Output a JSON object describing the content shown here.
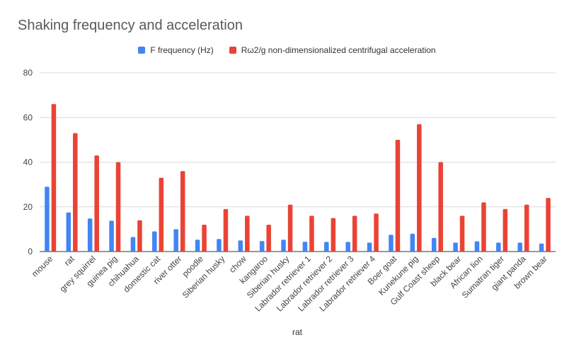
{
  "title": "Shaking frequency and acceleration",
  "chart_data": {
    "type": "bar",
    "title": "Shaking frequency and acceleration",
    "xlabel": "rat",
    "ylabel": "",
    "ylim": [
      0,
      80
    ],
    "yticks": [
      0,
      20,
      40,
      60,
      80
    ],
    "grid": true,
    "legend_position": "top-center",
    "categories": [
      "mouse",
      "rat",
      "grey squirrel",
      "guinea pig",
      "chihuahua",
      "domestic cat",
      "river otter",
      "poodle",
      "Siberian husky",
      "chow",
      "kangaroo",
      "Siberian husky",
      "Labrador retriever 1",
      "Labrador retriever 2",
      "Labrador retriever 3",
      "Labrador retriever 4",
      "Boer goat",
      "Kunekune pig",
      "Gulf Coast sheep",
      "black bear",
      "African lion",
      "Sumatran tiger",
      "giant panda",
      "brown bear"
    ],
    "series": [
      {
        "name": "F frequency (Hz)",
        "color": "#4285f4",
        "values": [
          29,
          17.5,
          14.8,
          13.8,
          6.5,
          9,
          10,
          5.3,
          5.6,
          5,
          4.7,
          5.3,
          4.4,
          4.3,
          4.3,
          4,
          7.5,
          8,
          6.1,
          4,
          4.6,
          4,
          4,
          3.6
        ]
      },
      {
        "name": "Rω2/g non-dimensionalized centrifugal acceleration",
        "color": "#ea4335",
        "values": [
          66,
          53,
          43,
          40,
          14,
          33,
          36,
          12,
          19,
          16,
          12,
          21,
          16,
          15,
          16,
          17,
          50,
          57,
          40,
          16,
          22,
          19,
          21,
          24
        ]
      }
    ]
  }
}
